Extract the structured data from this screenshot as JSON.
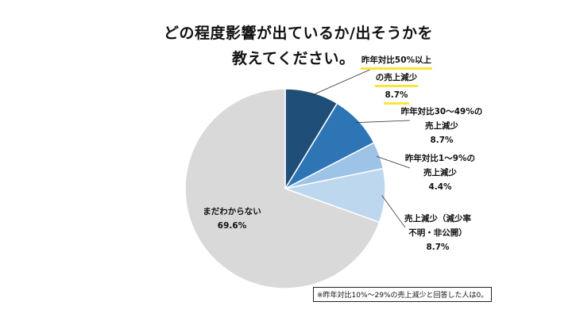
{
  "title": {
    "line1": "どの程度影響が出ているか/出そうかを",
    "line2": "教えてください。"
  },
  "chart_data": {
    "type": "pie",
    "start": "12 o'clock, clockwise",
    "slices": [
      {
        "lines": [
          "昨年対比50%以上",
          "の売上減少"
        ],
        "value": 8.7,
        "value_text": "8.7%",
        "color": "#1f4e79"
      },
      {
        "lines": [
          "昨年対比30～49%の",
          "売上減少"
        ],
        "value": 8.7,
        "value_text": "8.7%",
        "color": "#2e75b6"
      },
      {
        "lines": [
          "昨年対比1～9%の",
          "売上減少"
        ],
        "value": 4.4,
        "value_text": "4.4%",
        "color": "#9dc3e6"
      },
      {
        "lines": [
          "売上減少（減少率",
          "不明・非公開）"
        ],
        "value": 8.7,
        "value_text": "8.7%",
        "color": "#bdd7ee"
      },
      {
        "lines": [
          "まだわからない"
        ],
        "value": 69.6,
        "value_text": "69.6%",
        "color": "#d9d9d9"
      }
    ]
  },
  "note": "※昨年対比10%～29%の売上減少と回答した人は0。",
  "colors": {
    "highlight": "#ffe33a",
    "slice_border": "#ffffff",
    "leader_line": "#333333"
  }
}
